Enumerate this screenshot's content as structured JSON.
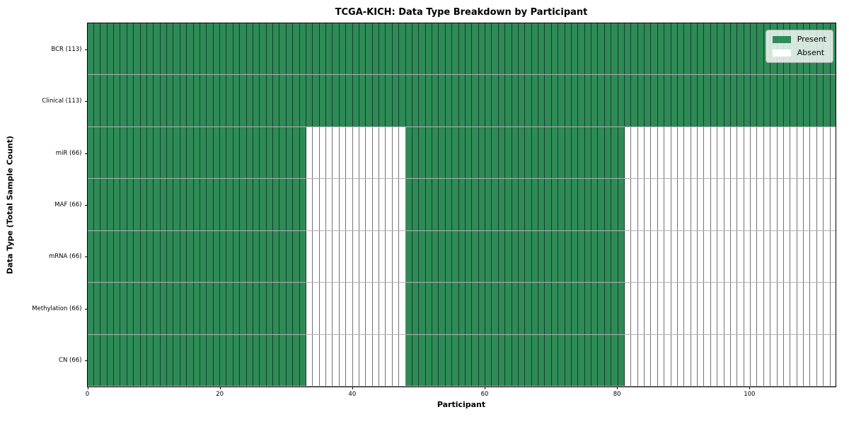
{
  "chart_data": {
    "type": "heatmap",
    "title": "TCGA-KICH: Data Type Breakdown by Participant",
    "xlabel": "Participant",
    "ylabel": "Data Type (Total Sample Count)",
    "n_participants": 113,
    "x_ticks": [
      0,
      20,
      40,
      60,
      80,
      100
    ],
    "xlim": [
      0,
      113
    ],
    "grid": true,
    "legend_position": "top-right",
    "rows": [
      {
        "label": "BCR (113)",
        "name": "bcr",
        "total_samples": 113,
        "present_ranges": [
          [
            0,
            113
          ]
        ]
      },
      {
        "label": "Clinical (113)",
        "name": "clinical",
        "total_samples": 113,
        "present_ranges": [
          [
            0,
            113
          ]
        ]
      },
      {
        "label": "miR (66)",
        "name": "mir",
        "total_samples": 66,
        "present_ranges": [
          [
            0,
            33
          ],
          [
            48,
            81
          ]
        ]
      },
      {
        "label": "MAF (66)",
        "name": "maf",
        "total_samples": 66,
        "present_ranges": [
          [
            0,
            33
          ],
          [
            48,
            81
          ]
        ]
      },
      {
        "label": "mRNA (66)",
        "name": "mrna",
        "total_samples": 66,
        "present_ranges": [
          [
            0,
            33
          ],
          [
            48,
            81
          ]
        ]
      },
      {
        "label": "Methylation (66)",
        "name": "methylation",
        "total_samples": 66,
        "present_ranges": [
          [
            0,
            33
          ],
          [
            48,
            81
          ]
        ]
      },
      {
        "label": "CN (66)",
        "name": "cn",
        "total_samples": 66,
        "present_ranges": [
          [
            0,
            33
          ],
          [
            48,
            81
          ]
        ]
      }
    ],
    "legend": [
      {
        "label": "Present",
        "color": "#2e8b57"
      },
      {
        "label": "Absent",
        "color": "#ffffff"
      }
    ],
    "colors": {
      "present": "#2e8b57",
      "absent": "#ffffff",
      "frame": "#000000",
      "background": "#ffffff"
    }
  }
}
